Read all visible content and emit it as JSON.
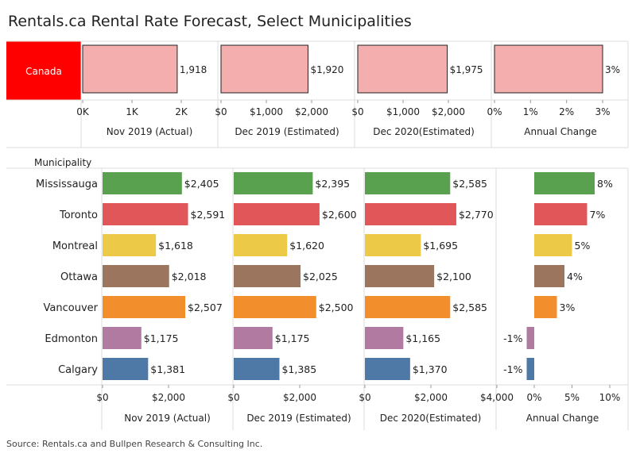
{
  "chart_data": {
    "type": "bar",
    "title": "Rentals.ca Rental Rate Forecast, Select Municipalities",
    "source": "Source: Rentals.ca and Bullpen Research & Consulting Inc.",
    "measures": [
      "Nov 2019 (Actual)",
      "Dec 2019 (Estimated)",
      "Dec 2020(Estimated)",
      "Annual Change"
    ],
    "canada": {
      "label": "Canada",
      "values": [
        1918,
        1920,
        1975,
        3
      ],
      "value_labels": [
        "1,918",
        "$1,920",
        "$1,975",
        "3%"
      ],
      "axes": [
        {
          "max": 2000,
          "ticks": [
            {
              "v": 0,
              "label": "0K"
            },
            {
              "v": 1000,
              "label": "1K"
            },
            {
              "v": 2000,
              "label": "2K"
            }
          ]
        },
        {
          "max": 2000,
          "ticks": [
            {
              "v": 0,
              "label": "$0"
            },
            {
              "v": 1000,
              "label": "$1,000"
            },
            {
              "v": 2000,
              "label": "$2,000"
            }
          ]
        },
        {
          "max": 2000,
          "ticks": [
            {
              "v": 0,
              "label": "$0"
            },
            {
              "v": 1000,
              "label": "$1,000"
            },
            {
              "v": 2000,
              "label": "$2,000"
            }
          ]
        },
        {
          "max": 3,
          "ticks": [
            {
              "v": 0,
              "label": "0%"
            },
            {
              "v": 1,
              "label": "1%"
            },
            {
              "v": 2,
              "label": "2%"
            },
            {
              "v": 3,
              "label": "3%"
            }
          ]
        }
      ]
    },
    "municipality_header": "Municipality",
    "municipalities": [
      {
        "name": "Mississauga",
        "color": "#59a14f",
        "values": [
          2405,
          2395,
          2585,
          8
        ],
        "labels": [
          "$2,405",
          "$2,395",
          "$2,585",
          "8%"
        ]
      },
      {
        "name": "Toronto",
        "color": "#e15759",
        "values": [
          2591,
          2600,
          2770,
          7
        ],
        "labels": [
          "$2,591",
          "$2,600",
          "$2,770",
          "7%"
        ]
      },
      {
        "name": "Montreal",
        "color": "#edc948",
        "values": [
          1618,
          1620,
          1695,
          5
        ],
        "labels": [
          "$1,618",
          "$1,620",
          "$1,695",
          "5%"
        ]
      },
      {
        "name": "Ottawa",
        "color": "#9c755f",
        "values": [
          2018,
          2025,
          2100,
          4
        ],
        "labels": [
          "$2,018",
          "$2,025",
          "$2,100",
          "4%"
        ]
      },
      {
        "name": "Vancouver",
        "color": "#f28e2b",
        "values": [
          2507,
          2500,
          2585,
          3
        ],
        "labels": [
          "$2,507",
          "$2,500",
          "$2,585",
          "3%"
        ]
      },
      {
        "name": "Edmonton",
        "color": "#b07aa1",
        "values": [
          1175,
          1175,
          1165,
          -1
        ],
        "labels": [
          "$1,175",
          "$1,175",
          "$1,165",
          "-1%"
        ]
      },
      {
        "name": "Calgary",
        "color": "#4e79a7",
        "values": [
          1381,
          1385,
          1370,
          -1
        ],
        "labels": [
          "$1,381",
          "$1,385",
          "$1,370",
          "-1%"
        ]
      }
    ],
    "muni_axes": [
      {
        "min": 0,
        "max": 4000,
        "ticks": [
          {
            "v": 0,
            "label": "$0"
          },
          {
            "v": 2000,
            "label": "$2,000"
          }
        ]
      },
      {
        "min": 0,
        "max": 4000,
        "ticks": [
          {
            "v": 0,
            "label": "$0"
          },
          {
            "v": 2000,
            "label": "$2,000"
          }
        ]
      },
      {
        "min": 0,
        "max": 4000,
        "ticks": [
          {
            "v": 0,
            "label": "$0"
          },
          {
            "v": 2000,
            "label": "$2,000"
          },
          {
            "v": 4000,
            "label": "$4,000"
          }
        ]
      },
      {
        "min": -5,
        "max": 10,
        "ticks": [
          {
            "v": 0,
            "label": "0%"
          },
          {
            "v": 5,
            "label": "5%"
          },
          {
            "v": 10,
            "label": "10%"
          }
        ]
      }
    ],
    "colors": {
      "canada_label_bg": "#ff0000",
      "canada_bar": "#f4aeae",
      "canada_bar_stroke": "#222222",
      "grid": "#dddddd"
    }
  }
}
